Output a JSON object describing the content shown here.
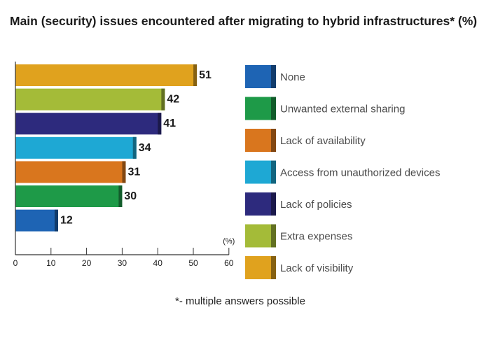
{
  "chart_data": {
    "type": "bar",
    "orientation": "horizontal",
    "title": "Main (security) issues encountered after migrating to hybrid infrastructures* (%)",
    "unit_label": "(%)",
    "xlim": [
      0,
      60
    ],
    "xticks": [
      0,
      10,
      20,
      30,
      40,
      50,
      60
    ],
    "grid": false,
    "legend_position": "right",
    "bars": [
      {
        "category": "Lack of visibility",
        "value": 51,
        "color": "#e0a21e"
      },
      {
        "category": "Extra expenses",
        "value": 42,
        "color": "#a4bb38"
      },
      {
        "category": "Lack of policies",
        "value": 41,
        "color": "#2d2a7d"
      },
      {
        "category": "Access from unauthorized devices",
        "value": 34,
        "color": "#1ea8d4"
      },
      {
        "category": "Lack of availability",
        "value": 31,
        "color": "#d9761e"
      },
      {
        "category": "Unwanted external sharing",
        "value": 30,
        "color": "#1e9a48"
      },
      {
        "category": "None",
        "value": 12,
        "color": "#1e64b4"
      }
    ],
    "legend": [
      {
        "label": "None",
        "color": "#1e64b4"
      },
      {
        "label": "Unwanted external sharing",
        "color": "#1e9a48"
      },
      {
        "label": "Lack of availability",
        "color": "#d9761e"
      },
      {
        "label": "Access from unauthorized devices",
        "color": "#1ea8d4"
      },
      {
        "label": "Lack of policies",
        "color": "#2d2a7d"
      },
      {
        "label": "Extra expenses",
        "color": "#a4bb38"
      },
      {
        "label": "Lack of visibility",
        "color": "#e0a21e"
      }
    ],
    "footnote": "*- multiple answers possible"
  }
}
